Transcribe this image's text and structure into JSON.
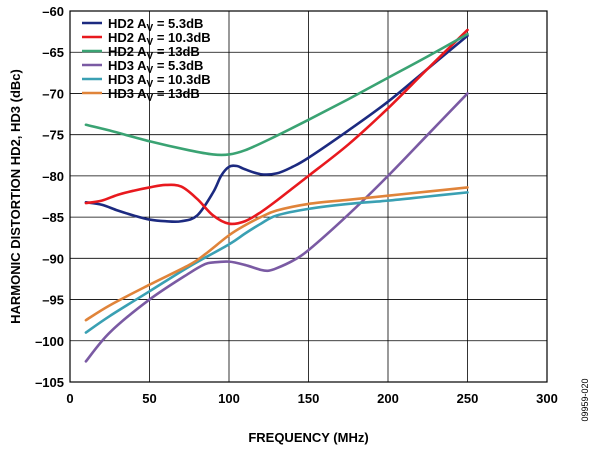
{
  "chart_data": {
    "type": "line",
    "xlabel": "FREQUENCY (MHz)",
    "ylabel": "HARMONIC DISTORTION HD2, HD3 (dBc)",
    "xlim": [
      0,
      300
    ],
    "ylim": [
      -105,
      -60
    ],
    "xticks": [
      0,
      50,
      100,
      150,
      200,
      250,
      300
    ],
    "yticks": [
      -60,
      -65,
      -70,
      -75,
      -80,
      -85,
      -90,
      -95,
      -100,
      -105
    ],
    "grid": true,
    "legend_position": "top-left",
    "figure_id": "09959-020",
    "series": [
      {
        "name": "HD2 AV = 5.3dB",
        "label_parts": [
          "HD2 A",
          "V",
          " = 5.3dB"
        ],
        "color": "#1c2a80",
        "x": [
          10,
          20,
          30,
          40,
          50,
          60,
          70,
          80,
          90,
          95,
          100,
          105,
          110,
          120,
          130,
          140,
          150,
          175,
          200,
          225,
          250
        ],
        "y": [
          -83.2,
          -83.5,
          -84.2,
          -84.8,
          -85.3,
          -85.5,
          -85.5,
          -84.8,
          -82.0,
          -80.0,
          -78.9,
          -78.8,
          -79.2,
          -79.8,
          -79.7,
          -78.9,
          -77.8,
          -74.5,
          -71.0,
          -67.0,
          -63.0
        ]
      },
      {
        "name": "HD2 AV = 10.3dB",
        "label_parts": [
          "HD2 A",
          "V",
          " = 10.3dB"
        ],
        "color": "#e8191e",
        "x": [
          10,
          20,
          30,
          40,
          50,
          60,
          70,
          80,
          90,
          100,
          110,
          120,
          130,
          140,
          150,
          175,
          200,
          225,
          250
        ],
        "y": [
          -83.3,
          -83.0,
          -82.3,
          -81.8,
          -81.4,
          -81.1,
          -81.3,
          -82.8,
          -84.8,
          -85.8,
          -85.5,
          -84.4,
          -83.0,
          -81.5,
          -80.0,
          -76.2,
          -71.8,
          -67.0,
          -62.3
        ]
      },
      {
        "name": "HD2 AV = 13dB",
        "label_parts": [
          "HD2 A",
          "V",
          " = 13dB"
        ],
        "color": "#3aa373",
        "x": [
          10,
          25,
          50,
          75,
          90,
          100,
          110,
          125,
          150,
          175,
          200,
          225,
          250
        ],
        "y": [
          -73.8,
          -74.5,
          -75.8,
          -76.9,
          -77.4,
          -77.4,
          -76.9,
          -75.6,
          -73.2,
          -70.7,
          -68.1,
          -65.5,
          -62.8
        ]
      },
      {
        "name": "HD3 AV = 5.3dB",
        "label_parts": [
          "HD3 A",
          "V",
          " = 5.3dB"
        ],
        "color": "#7a5aa3",
        "x": [
          10,
          25,
          50,
          75,
          85,
          90,
          100,
          110,
          120,
          125,
          130,
          140,
          150,
          175,
          200,
          225,
          250
        ],
        "y": [
          -102.5,
          -99.0,
          -95.0,
          -91.8,
          -90.7,
          -90.5,
          -90.4,
          -90.8,
          -91.4,
          -91.5,
          -91.2,
          -90.3,
          -89.0,
          -84.7,
          -80.0,
          -75.0,
          -70.0
        ]
      },
      {
        "name": "HD3 AV = 10.3dB",
        "label_parts": [
          "HD3 A",
          "V",
          " = 10.3dB"
        ],
        "color": "#3aa0b3",
        "x": [
          10,
          25,
          50,
          75,
          100,
          110,
          120,
          130,
          150,
          175,
          200,
          225,
          250
        ],
        "y": [
          -99.0,
          -97.0,
          -94.0,
          -91.0,
          -88.3,
          -87.0,
          -85.8,
          -84.8,
          -84.0,
          -83.4,
          -83.0,
          -82.5,
          -82.0
        ]
      },
      {
        "name": "HD3 AV = 13dB",
        "label_parts": [
          "HD3 A",
          "V",
          " = 13dB"
        ],
        "color": "#e0843a",
        "x": [
          10,
          25,
          50,
          75,
          85,
          100,
          110,
          120,
          130,
          150,
          175,
          200,
          225,
          250
        ],
        "y": [
          -97.5,
          -95.7,
          -93.2,
          -90.8,
          -89.5,
          -87.2,
          -86.0,
          -85.0,
          -84.2,
          -83.4,
          -82.9,
          -82.4,
          -81.9,
          -81.4
        ]
      }
    ]
  }
}
